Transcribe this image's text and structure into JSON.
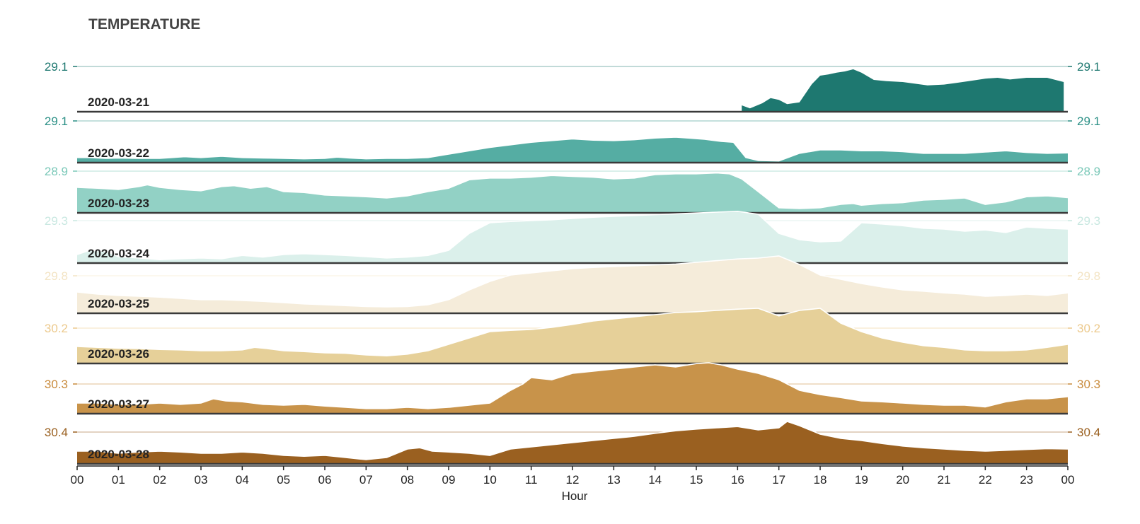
{
  "chart_data": {
    "type": "area",
    "title": "TEMPERATURE",
    "xlabel": "Hour",
    "x_tick_labels": [
      "00",
      "01",
      "02",
      "03",
      "04",
      "05",
      "06",
      "07",
      "08",
      "09",
      "10",
      "11",
      "12",
      "13",
      "14",
      "15",
      "16",
      "17",
      "18",
      "19",
      "20",
      "21",
      "22",
      "23",
      "00"
    ],
    "x_range_hours": [
      0,
      24
    ],
    "series": [
      {
        "name": "2020-03-21",
        "color": "#1e7870",
        "peak_label": "29.1",
        "x": [
          16.1,
          16.3,
          16.6,
          16.8,
          17.0,
          17.2,
          17.5,
          17.8,
          18.0,
          18.2,
          18.4,
          18.6,
          18.8,
          19.0,
          19.3,
          19.6,
          20.0,
          20.3,
          20.6,
          21.0,
          21.3,
          21.6,
          22.0,
          22.3,
          22.6,
          23.0,
          23.5,
          23.9
        ],
        "y": [
          0.15,
          0.08,
          0.2,
          0.32,
          0.28,
          0.18,
          0.22,
          0.65,
          0.85,
          0.88,
          0.92,
          0.95,
          1.0,
          0.92,
          0.75,
          0.72,
          0.7,
          0.66,
          0.62,
          0.64,
          0.68,
          0.72,
          0.78,
          0.8,
          0.76,
          0.8,
          0.8,
          0.7
        ]
      },
      {
        "name": "2020-03-22",
        "color": "#55ada3",
        "peak_label": "29.1",
        "x": [
          0,
          0.3,
          0.7,
          1.0,
          1.5,
          2.0,
          2.3,
          2.6,
          3.0,
          3.5,
          4.0,
          4.5,
          5.0,
          5.5,
          6.0,
          6.3,
          6.6,
          7.0,
          7.5,
          8.0,
          8.5,
          9.0,
          9.5,
          10.0,
          10.5,
          11.0,
          11.5,
          12.0,
          12.5,
          13.0,
          13.5,
          14.0,
          14.5,
          14.8,
          15.2,
          15.6,
          15.9,
          16.2,
          16.5,
          17.0,
          17.5,
          18.0,
          18.5,
          19.0,
          19.5,
          20.0,
          20.5,
          21.0,
          21.5,
          22.0,
          22.5,
          23.0,
          23.5,
          24.0
        ],
        "y": [
          0.12,
          0.12,
          0.1,
          0.11,
          0.1,
          0.1,
          0.12,
          0.14,
          0.12,
          0.15,
          0.12,
          0.11,
          0.1,
          0.09,
          0.1,
          0.13,
          0.11,
          0.09,
          0.1,
          0.1,
          0.12,
          0.2,
          0.28,
          0.36,
          0.42,
          0.48,
          0.52,
          0.56,
          0.53,
          0.52,
          0.54,
          0.58,
          0.6,
          0.58,
          0.55,
          0.5,
          0.48,
          0.12,
          0.05,
          0.04,
          0.22,
          0.3,
          0.3,
          0.28,
          0.28,
          0.26,
          0.22,
          0.22,
          0.22,
          0.25,
          0.28,
          0.24,
          0.22,
          0.23
        ]
      },
      {
        "name": "2020-03-23",
        "color": "#92d1c5",
        "peak_label": "28.9",
        "x": [
          0,
          0.5,
          1.0,
          1.5,
          1.7,
          2.0,
          2.5,
          3.0,
          3.5,
          3.8,
          4.2,
          4.6,
          5.0,
          5.5,
          6.0,
          6.5,
          7.0,
          7.5,
          8.0,
          8.5,
          9.0,
          9.5,
          10.0,
          10.5,
          11.0,
          11.5,
          12.0,
          12.5,
          13.0,
          13.5,
          14.0,
          14.5,
          15.0,
          15.5,
          15.8,
          16.1,
          16.5,
          17.0,
          17.5,
          18.0,
          18.5,
          18.8,
          19.0,
          19.5,
          20.0,
          20.5,
          21.0,
          21.5,
          22.0,
          22.5,
          23.0,
          23.5,
          24.0
        ],
        "y": [
          0.6,
          0.58,
          0.55,
          0.62,
          0.66,
          0.6,
          0.55,
          0.52,
          0.62,
          0.64,
          0.58,
          0.62,
          0.5,
          0.48,
          0.42,
          0.4,
          0.38,
          0.35,
          0.4,
          0.5,
          0.58,
          0.78,
          0.82,
          0.82,
          0.84,
          0.88,
          0.86,
          0.84,
          0.8,
          0.82,
          0.9,
          0.92,
          0.92,
          0.94,
          0.92,
          0.8,
          0.5,
          0.12,
          0.1,
          0.12,
          0.2,
          0.22,
          0.18,
          0.22,
          0.24,
          0.3,
          0.32,
          0.35,
          0.2,
          0.26,
          0.38,
          0.4,
          0.36
        ]
      },
      {
        "name": "2020-03-24",
        "color": "#dbf0eb",
        "peak_label": "29.3",
        "x": [
          0,
          0.3,
          0.7,
          1.0,
          1.5,
          2.0,
          2.5,
          3.0,
          3.5,
          4.0,
          4.5,
          5.0,
          5.5,
          6.0,
          6.5,
          7.0,
          7.5,
          8.0,
          8.5,
          9.0,
          9.5,
          10.0,
          10.5,
          11.0,
          11.5,
          12.0,
          12.5,
          13.0,
          13.5,
          14.0,
          14.5,
          15.0,
          15.5,
          16.0,
          16.5,
          17.0,
          17.5,
          18.0,
          18.5,
          19.0,
          19.5,
          20.0,
          20.5,
          21.0,
          21.5,
          22.0,
          22.5,
          23.0,
          23.5,
          24.0
        ],
        "y": [
          0.2,
          0.3,
          0.28,
          0.15,
          0.12,
          0.08,
          0.1,
          0.12,
          0.1,
          0.18,
          0.14,
          0.2,
          0.22,
          0.2,
          0.18,
          0.15,
          0.12,
          0.14,
          0.18,
          0.3,
          0.7,
          0.95,
          0.98,
          1.0,
          1.02,
          1.05,
          1.08,
          1.1,
          1.12,
          1.14,
          1.16,
          1.18,
          1.2,
          1.22,
          1.15,
          0.7,
          0.55,
          0.5,
          0.52,
          0.95,
          0.92,
          0.88,
          0.82,
          0.8,
          0.75,
          0.78,
          0.72,
          0.85,
          0.82,
          0.8
        ]
      },
      {
        "name": "2020-03-25",
        "color": "#f5ecda",
        "peak_label": "29.8",
        "x": [
          0,
          0.5,
          1.0,
          1.5,
          2.0,
          2.5,
          3.0,
          3.5,
          4.0,
          4.5,
          5.0,
          5.5,
          6.0,
          6.5,
          7.0,
          7.5,
          8.0,
          8.5,
          9.0,
          9.5,
          10.0,
          10.5,
          11.0,
          11.5,
          12.0,
          12.5,
          13.0,
          13.5,
          14.0,
          14.5,
          15.0,
          15.5,
          16.0,
          16.5,
          17.0,
          17.5,
          18.0,
          18.5,
          19.0,
          19.5,
          20.0,
          20.5,
          21.0,
          21.5,
          22.0,
          22.5,
          23.0,
          23.5,
          24.0
        ],
        "y": [
          0.5,
          0.45,
          0.42,
          0.4,
          0.38,
          0.35,
          0.32,
          0.32,
          0.3,
          0.28,
          0.25,
          0.22,
          0.2,
          0.18,
          0.16,
          0.15,
          0.16,
          0.2,
          0.32,
          0.55,
          0.75,
          0.9,
          0.95,
          1.0,
          1.05,
          1.08,
          1.1,
          1.12,
          1.14,
          1.16,
          1.2,
          1.24,
          1.28,
          1.3,
          1.35,
          1.15,
          0.9,
          0.8,
          0.7,
          0.62,
          0.55,
          0.52,
          0.48,
          0.45,
          0.4,
          0.42,
          0.45,
          0.42,
          0.48
        ]
      },
      {
        "name": "2020-03-26",
        "color": "#e6d099",
        "peak_label": "30.2",
        "x": [
          0,
          0.5,
          1.0,
          1.5,
          2.0,
          2.5,
          3.0,
          3.5,
          4.0,
          4.3,
          4.6,
          5.0,
          5.5,
          6.0,
          6.5,
          7.0,
          7.5,
          8.0,
          8.5,
          9.0,
          9.5,
          10.0,
          10.5,
          11.0,
          11.5,
          12.0,
          12.5,
          13.0,
          13.5,
          14.0,
          14.5,
          15.0,
          15.5,
          16.0,
          16.5,
          17.0,
          17.5,
          18.0,
          18.5,
          19.0,
          19.5,
          20.0,
          20.5,
          21.0,
          21.5,
          22.0,
          22.5,
          23.0,
          23.5,
          24.0
        ],
        "y": [
          0.4,
          0.38,
          0.36,
          0.35,
          0.33,
          0.32,
          0.3,
          0.3,
          0.32,
          0.38,
          0.35,
          0.3,
          0.28,
          0.25,
          0.24,
          0.2,
          0.18,
          0.22,
          0.3,
          0.45,
          0.6,
          0.75,
          0.78,
          0.8,
          0.85,
          0.92,
          1.0,
          1.05,
          1.1,
          1.15,
          1.2,
          1.22,
          1.25,
          1.28,
          1.3,
          1.12,
          1.25,
          1.3,
          0.95,
          0.75,
          0.6,
          0.5,
          0.42,
          0.38,
          0.32,
          0.3,
          0.3,
          0.32,
          0.38,
          0.45
        ]
      },
      {
        "name": "2020-03-27",
        "color": "#c8934a",
        "peak_label": "30.3",
        "x": [
          0,
          0.5,
          1.0,
          1.5,
          2.0,
          2.5,
          3.0,
          3.3,
          3.6,
          4.0,
          4.5,
          5.0,
          5.5,
          6.0,
          6.5,
          7.0,
          7.5,
          8.0,
          8.5,
          9.0,
          9.5,
          10.0,
          10.5,
          10.8,
          11.0,
          11.5,
          12.0,
          12.5,
          13.0,
          13.5,
          14.0,
          14.5,
          15.0,
          15.3,
          15.6,
          16.0,
          16.5,
          17.0,
          17.5,
          18.0,
          18.5,
          19.0,
          19.5,
          20.0,
          20.5,
          21.0,
          21.5,
          22.0,
          22.5,
          23.0,
          23.5,
          24.0
        ],
        "y": [
          0.25,
          0.25,
          0.22,
          0.22,
          0.25,
          0.22,
          0.25,
          0.35,
          0.3,
          0.28,
          0.22,
          0.2,
          0.22,
          0.18,
          0.15,
          0.12,
          0.12,
          0.15,
          0.12,
          0.15,
          0.2,
          0.25,
          0.55,
          0.7,
          0.85,
          0.8,
          0.95,
          1.0,
          1.05,
          1.1,
          1.15,
          1.1,
          1.18,
          1.2,
          1.15,
          1.05,
          0.95,
          0.8,
          0.55,
          0.45,
          0.38,
          0.3,
          0.28,
          0.25,
          0.22,
          0.2,
          0.2,
          0.16,
          0.28,
          0.35,
          0.35,
          0.4
        ]
      },
      {
        "name": "2020-03-28",
        "color": "#9a6020",
        "peak_label": "30.4",
        "x": [
          0,
          0.5,
          1.0,
          1.5,
          2.0,
          2.5,
          3.0,
          3.5,
          4.0,
          4.5,
          5.0,
          5.5,
          6.0,
          6.5,
          7.0,
          7.5,
          8.0,
          8.3,
          8.6,
          9.0,
          9.5,
          10.0,
          10.5,
          11.0,
          11.5,
          12.0,
          12.5,
          13.0,
          13.5,
          14.0,
          14.5,
          15.0,
          15.5,
          16.0,
          16.5,
          17.0,
          17.2,
          17.5,
          18.0,
          18.5,
          19.0,
          19.5,
          20.0,
          20.5,
          21.0,
          21.5,
          22.0,
          22.5,
          23.0,
          23.5,
          24.0
        ],
        "y": [
          0.3,
          0.3,
          0.25,
          0.28,
          0.3,
          0.28,
          0.25,
          0.25,
          0.28,
          0.25,
          0.2,
          0.18,
          0.2,
          0.15,
          0.1,
          0.15,
          0.35,
          0.38,
          0.3,
          0.28,
          0.25,
          0.2,
          0.35,
          0.4,
          0.45,
          0.5,
          0.55,
          0.6,
          0.65,
          0.72,
          0.78,
          0.82,
          0.85,
          0.88,
          0.8,
          0.85,
          1.0,
          0.9,
          0.7,
          0.6,
          0.55,
          0.48,
          0.42,
          0.38,
          0.35,
          0.32,
          0.3,
          0.32,
          0.34,
          0.36,
          0.35
        ]
      }
    ]
  }
}
